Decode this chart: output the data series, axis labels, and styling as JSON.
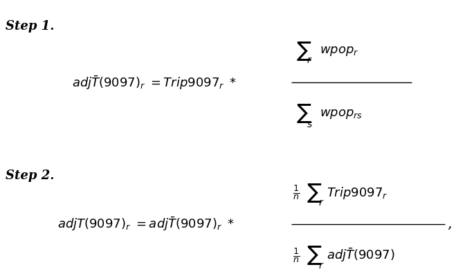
{
  "background_color": "#ffffff",
  "step1_label": "Step 1.",
  "step2_label": "Step 2.",
  "formula1_lhs": "$adj\\bar{T}(9097)_r = Trip9097_r$",
  "formula2_lhs": "$adjT(9097)_r = adj\\bar{T}(9097)_r$",
  "figsize": [
    6.85,
    3.96
  ],
  "dpi": 100
}
